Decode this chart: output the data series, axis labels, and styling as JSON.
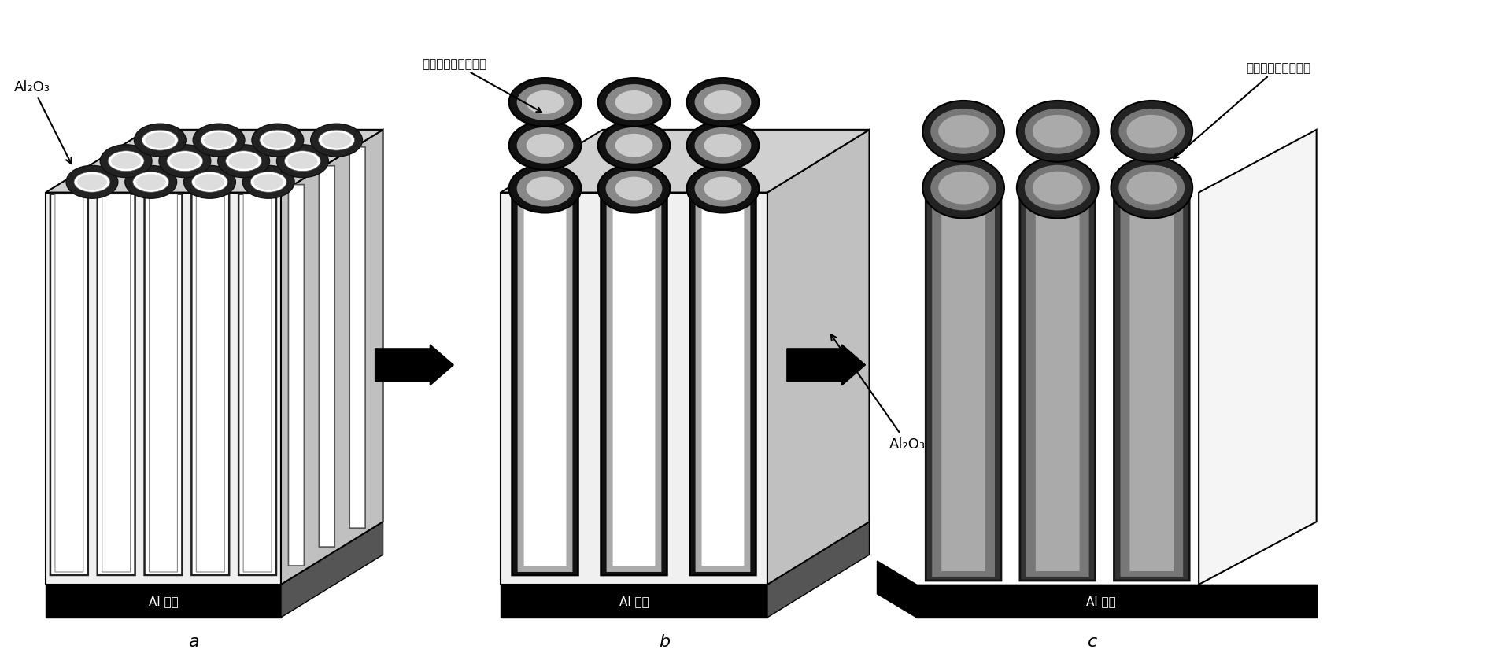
{
  "bg_color": "#ffffff",
  "label_a": "a",
  "label_b": "b",
  "label_c": "c",
  "label_al2o3_a": "Al₂O₃",
  "label_al_base_a": "Al 基底",
  "label_tio2sio2_b": "二氧化钓和二氧化硅",
  "label_al2o3_b": "Al₂O₃",
  "label_al_base_b": "Al 基底",
  "label_tio2sio2_c": "二氧化钓和二氧化硅",
  "label_al_base_c": "Al 基底"
}
